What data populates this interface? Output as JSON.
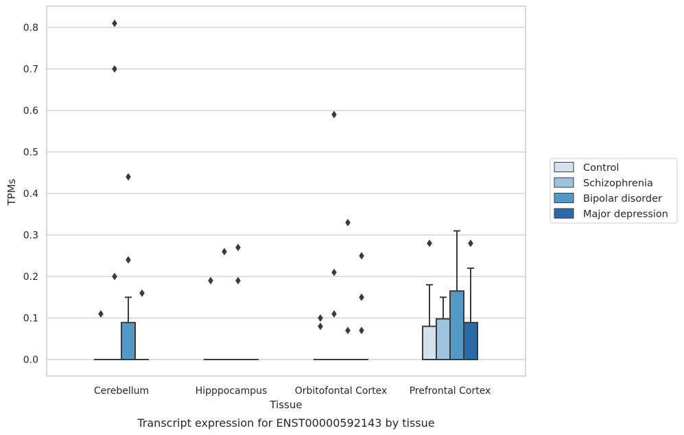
{
  "chart_data": {
    "type": "box",
    "caption": "Transcript expression for ENST00000592143 by tissue",
    "xlabel": "Tissue",
    "ylabel": "TPMs",
    "ylim": [
      -0.04,
      0.855
    ],
    "yticks": [
      "0.0",
      "0.1",
      "0.2",
      "0.3",
      "0.4",
      "0.5",
      "0.6",
      "0.7",
      "0.8"
    ],
    "grid": true,
    "legend_position": "right",
    "categories": [
      "Cerebellum",
      "Hipppocampus",
      "Orbitofontal Cortex",
      "Prefrontal Cortex"
    ],
    "series": [
      {
        "name": "Control",
        "color": "#d3e2ef",
        "boxes": [
          {
            "q1": 0,
            "median": 0,
            "q3": 0,
            "whisker_low": 0,
            "whisker_high": 0,
            "outliers": [
              0.11
            ]
          },
          {
            "q1": 0,
            "median": 0,
            "q3": 0,
            "whisker_low": 0,
            "whisker_high": 0,
            "outliers": [
              0.19
            ]
          },
          {
            "q1": 0,
            "median": 0,
            "q3": 0,
            "whisker_low": 0,
            "whisker_high": 0,
            "outliers": [
              0.08,
              0.1
            ]
          },
          {
            "q1": 0,
            "median": 0,
            "q3": 0.08,
            "whisker_low": 0,
            "whisker_high": 0.18,
            "outliers": [
              0.28
            ]
          }
        ]
      },
      {
        "name": "Schizophrenia",
        "color": "#9dc3de",
        "boxes": [
          {
            "q1": 0,
            "median": 0,
            "q3": 0,
            "whisker_low": 0,
            "whisker_high": 0,
            "outliers": [
              0.2,
              0.7,
              0.81
            ]
          },
          {
            "q1": 0,
            "median": 0,
            "q3": 0,
            "whisker_low": 0,
            "whisker_high": 0,
            "outliers": [
              0.26
            ]
          },
          {
            "q1": 0,
            "median": 0,
            "q3": 0,
            "whisker_low": 0,
            "whisker_high": 0,
            "outliers": [
              0.11,
              0.21,
              0.59
            ]
          },
          {
            "q1": 0,
            "median": 0,
            "q3": 0.098,
            "whisker_low": 0,
            "whisker_high": 0.15,
            "outliers": []
          }
        ]
      },
      {
        "name": "Bipolar disorder",
        "color": "#5499c6",
        "boxes": [
          {
            "q1": 0,
            "median": 0,
            "q3": 0.089,
            "whisker_low": 0,
            "whisker_high": 0.15,
            "outliers": [
              0.24,
              0.44
            ]
          },
          {
            "q1": 0,
            "median": 0,
            "q3": 0,
            "whisker_low": 0,
            "whisker_high": 0,
            "outliers": [
              0.19,
              0.27
            ]
          },
          {
            "q1": 0,
            "median": 0,
            "q3": 0,
            "whisker_low": 0,
            "whisker_high": 0,
            "outliers": [
              0.07,
              0.33
            ]
          },
          {
            "q1": 0,
            "median": 0,
            "q3": 0.165,
            "whisker_low": 0,
            "whisker_high": 0.31,
            "outliers": []
          }
        ]
      },
      {
        "name": "Major depression",
        "color": "#2a6aa9",
        "boxes": [
          {
            "q1": 0,
            "median": 0,
            "q3": 0,
            "whisker_low": 0,
            "whisker_high": 0,
            "outliers": [
              0.16
            ]
          },
          {
            "q1": 0,
            "median": 0,
            "q3": 0,
            "whisker_low": 0,
            "whisker_high": 0,
            "outliers": []
          },
          {
            "q1": 0,
            "median": 0,
            "q3": 0,
            "whisker_low": 0,
            "whisker_high": 0,
            "outliers": [
              0.07,
              0.15,
              0.25
            ]
          },
          {
            "q1": 0,
            "median": 0,
            "q3": 0.089,
            "whisker_low": 0,
            "whisker_high": 0.22,
            "outliers": [
              0.28
            ]
          }
        ]
      }
    ],
    "colors": {
      "grid": "#cccccc",
      "frame": "#cccccc",
      "box_edge": "#3a3a3a",
      "outlier": "#3a3a3a"
    }
  }
}
